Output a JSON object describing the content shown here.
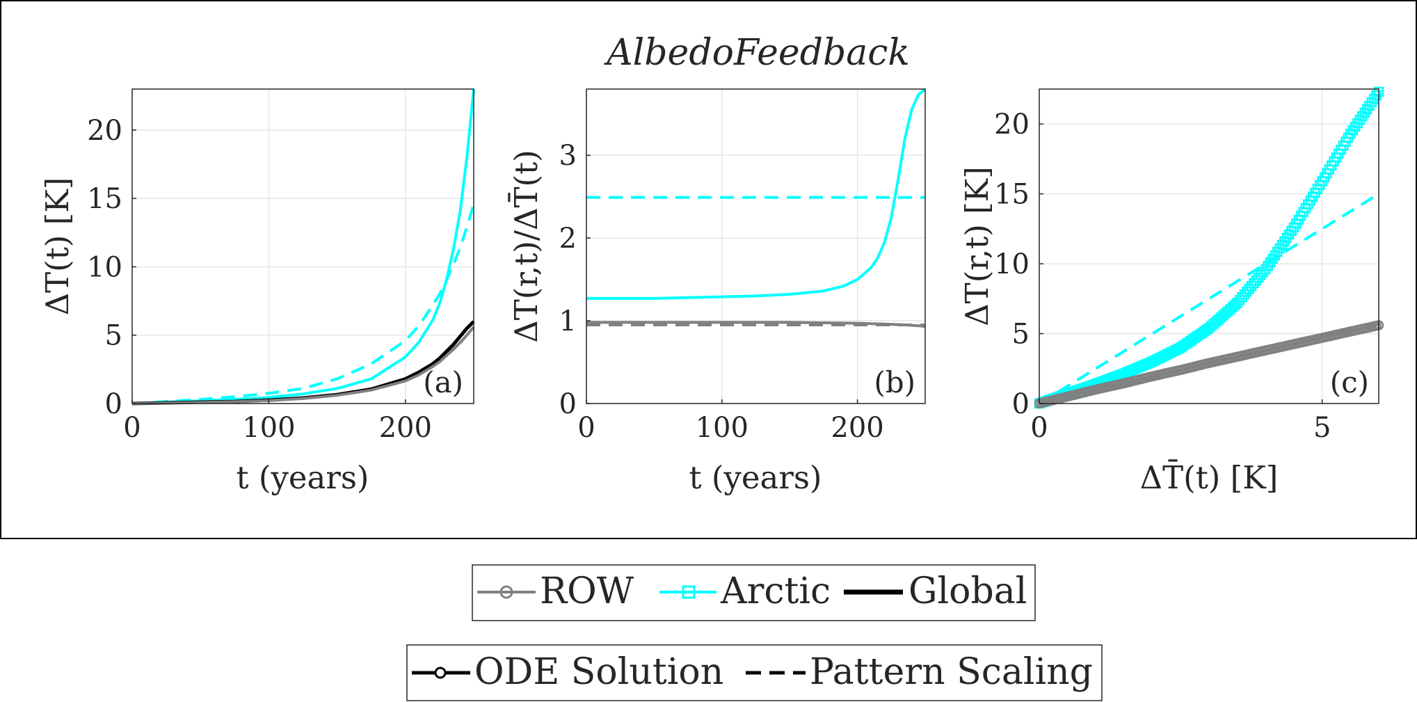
{
  "figure": {
    "title": "AlbedoFeedback"
  },
  "colors": {
    "row": "#808080",
    "arctic": "#00ffff",
    "global": "#000000",
    "grid": "#e6e6e6",
    "axis": "#262626"
  },
  "chart_data": [
    {
      "id": "a",
      "type": "line",
      "panel_label": "(a)",
      "xlabel": "t (years)",
      "ylabel": "ΔT(t) [K]",
      "xlim": [
        0,
        250
      ],
      "ylim": [
        0,
        23
      ],
      "xticks": [
        0,
        100,
        200
      ],
      "yticks": [
        0,
        5,
        10,
        15,
        20
      ],
      "grid": true,
      "series": [
        {
          "name": "Arctic ODE Solution",
          "region": "arctic",
          "style": "solid",
          "x": [
            0,
            25,
            50,
            75,
            100,
            125,
            150,
            175,
            200,
            210,
            220,
            225,
            230,
            235,
            240,
            245,
            250
          ],
          "y": [
            0.0,
            0.1,
            0.2,
            0.3,
            0.45,
            0.7,
            1.1,
            1.8,
            3.4,
            4.5,
            6.1,
            7.3,
            9.0,
            11.2,
            14.0,
            18.0,
            23.0
          ]
        },
        {
          "name": "Arctic Pattern Scaling",
          "region": "arctic",
          "style": "dashed",
          "x": [
            0,
            25,
            50,
            75,
            100,
            125,
            150,
            175,
            200,
            210,
            220,
            225,
            230,
            235,
            240,
            245,
            250
          ],
          "y": [
            0.0,
            0.15,
            0.3,
            0.5,
            0.75,
            1.1,
            1.8,
            2.9,
            4.6,
            5.7,
            7.2,
            8.0,
            9.0,
            10.1,
            11.4,
            12.9,
            14.6
          ]
        },
        {
          "name": "Global ODE Solution",
          "region": "global",
          "style": "solid",
          "x": [
            0,
            25,
            50,
            75,
            100,
            125,
            150,
            175,
            200,
            210,
            220,
            225,
            230,
            235,
            240,
            245,
            250
          ],
          "y": [
            0.0,
            0.05,
            0.1,
            0.15,
            0.25,
            0.4,
            0.65,
            1.05,
            1.8,
            2.3,
            2.9,
            3.3,
            3.8,
            4.3,
            4.9,
            5.5,
            6.0
          ]
        },
        {
          "name": "ROW ODE Solution",
          "region": "row",
          "style": "solid",
          "x": [
            0,
            25,
            50,
            75,
            100,
            125,
            150,
            175,
            200,
            210,
            220,
            225,
            230,
            235,
            240,
            245,
            250
          ],
          "y": [
            0.0,
            0.04,
            0.08,
            0.13,
            0.22,
            0.36,
            0.6,
            0.98,
            1.65,
            2.1,
            2.7,
            3.05,
            3.5,
            3.95,
            4.45,
            5.0,
            5.6
          ]
        }
      ]
    },
    {
      "id": "b",
      "type": "line",
      "panel_label": "(b)",
      "xlabel": "t (years)",
      "ylabel": "ΔT(r,t)/ΔT̄(t)",
      "xlim": [
        0,
        250
      ],
      "ylim": [
        0,
        3.8
      ],
      "xticks": [
        0,
        100,
        200
      ],
      "yticks": [
        0,
        1,
        2,
        3
      ],
      "grid": true,
      "series": [
        {
          "name": "Arctic ODE Solution",
          "region": "arctic",
          "style": "solid",
          "x": [
            0,
            25,
            50,
            75,
            100,
            125,
            150,
            175,
            190,
            200,
            210,
            215,
            220,
            225,
            230,
            235,
            240,
            245,
            250
          ],
          "y": [
            1.27,
            1.27,
            1.27,
            1.28,
            1.29,
            1.3,
            1.32,
            1.36,
            1.42,
            1.5,
            1.64,
            1.76,
            1.95,
            2.25,
            2.7,
            3.2,
            3.55,
            3.73,
            3.8
          ]
        },
        {
          "name": "Arctic Pattern Scaling",
          "region": "arctic",
          "style": "dashed",
          "x": [
            0,
            250
          ],
          "y": [
            2.49,
            2.49
          ]
        },
        {
          "name": "ROW ODE Solution",
          "region": "row",
          "style": "solid",
          "x": [
            0,
            50,
            100,
            150,
            200,
            220,
            235,
            245,
            250
          ],
          "y": [
            0.98,
            0.98,
            0.98,
            0.98,
            0.97,
            0.96,
            0.95,
            0.94,
            0.93
          ]
        },
        {
          "name": "ROW Pattern Scaling",
          "region": "row",
          "style": "dashed",
          "x": [
            0,
            250
          ],
          "y": [
            0.95,
            0.95
          ]
        }
      ]
    },
    {
      "id": "c",
      "type": "scatter",
      "panel_label": "(c)",
      "xlabel": "ΔT̄(t) [K]",
      "ylabel": "ΔT(r,t) [K]",
      "xlim": [
        0,
        6
      ],
      "ylim": [
        0,
        22.5
      ],
      "xticks": [
        0,
        5
      ],
      "yticks": [
        0,
        5,
        10,
        15,
        20
      ],
      "grid": true,
      "series": [
        {
          "name": "Arctic ODE Solution",
          "region": "arctic",
          "style": "markers-square",
          "x": [
            0.0,
            0.5,
            1.0,
            1.5,
            2.0,
            2.5,
            3.0,
            3.5,
            4.0,
            4.5,
            5.0,
            5.5,
            6.0
          ],
          "y": [
            0.0,
            0.7,
            1.4,
            2.15,
            3.0,
            4.0,
            5.4,
            7.2,
            9.6,
            12.6,
            15.9,
            19.3,
            22.3
          ]
        },
        {
          "name": "Arctic Pattern Scaling",
          "region": "arctic",
          "style": "dashed",
          "x": [
            0,
            6
          ],
          "y": [
            0,
            15.0
          ]
        },
        {
          "name": "ROW ODE Solution",
          "region": "row",
          "style": "markers-circle",
          "x": [
            0.0,
            0.5,
            1.0,
            1.5,
            2.0,
            2.5,
            3.0,
            3.5,
            4.0,
            4.5,
            5.0,
            5.5,
            6.0
          ],
          "y": [
            0.0,
            0.5,
            1.0,
            1.45,
            1.95,
            2.4,
            2.9,
            3.35,
            3.8,
            4.25,
            4.7,
            5.15,
            5.6
          ]
        },
        {
          "name": "ROW Pattern Scaling",
          "region": "row",
          "style": "dashed",
          "x": [
            0,
            6
          ],
          "y": [
            0,
            5.7
          ]
        }
      ]
    }
  ],
  "legend_regions": {
    "items": [
      {
        "label": "ROW",
        "region": "row",
        "marker": "circle"
      },
      {
        "label": "Arctic",
        "region": "arctic",
        "marker": "square"
      },
      {
        "label": "Global",
        "region": "global",
        "marker": "none"
      }
    ]
  },
  "legend_styles": {
    "items": [
      {
        "label": "ODE Solution",
        "style": "solid",
        "marker": "circle"
      },
      {
        "label": "Pattern Scaling",
        "style": "dashed",
        "marker": "none"
      }
    ]
  }
}
